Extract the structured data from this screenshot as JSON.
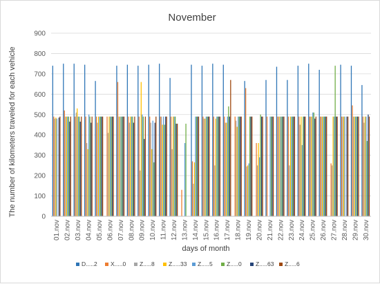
{
  "chart_data": {
    "type": "bar",
    "title": "November",
    "xlabel": "days of month",
    "ylabel": "The number of kilometers traveled for each vehicle",
    "ylim": [
      0,
      900
    ],
    "yticks": [
      0,
      100,
      200,
      300,
      400,
      500,
      600,
      700,
      800,
      900
    ],
    "grid": true,
    "legend_position": "bottom",
    "categories": [
      "01.nov",
      "02.nov",
      "03.nov",
      "04.nov",
      "05.nov",
      "06.nov",
      "07.nov",
      "08.nov",
      "09.nov",
      "10.nov",
      "11.nov",
      "12.nov",
      "13.nov",
      "14.nov",
      "15.nov",
      "16.nov",
      "17.nov",
      "18.nov",
      "19.nov",
      "20.nov",
      "21.nov",
      "22.nov",
      "23.nov",
      "24.nov",
      "25.nov",
      "26.nov",
      "27.nov",
      "28.nov",
      "29.nov",
      "30.nov"
    ],
    "series": [
      {
        "name": "D.....2",
        "color": "#2e75b6",
        "values": [
          740,
          750,
          750,
          745,
          665,
          0,
          740,
          745,
          740,
          745,
          750,
          680,
          0,
          745,
          740,
          750,
          745,
          0,
          665,
          0,
          670,
          735,
          670,
          740,
          750,
          720,
          0,
          745,
          740,
          645
        ]
      },
      {
        "name": "X.....0",
        "color": "#ed7d31",
        "values": [
          490,
          520,
          490,
          490,
          490,
          490,
          660,
          490,
          490,
          490,
          490,
          490,
          130,
          270,
          490,
          490,
          490,
          490,
          630,
          360,
          490,
          490,
          490,
          490,
          490,
          490,
          260,
          490,
          545,
          490
        ]
      },
      {
        "name": "Z.....8",
        "color": "#a5a5a5",
        "values": [
          480,
          490,
          510,
          360,
          460,
          410,
          490,
          460,
          225,
          460,
          490,
          330,
          0,
          160,
          480,
          250,
          460,
          470,
          245,
          250,
          0,
          490,
          250,
          450,
          490,
          490,
          250,
          490,
          490,
          460
        ]
      },
      {
        "name": "Z.....33",
        "color": "#ffc000",
        "values": [
          485,
          490,
          530,
          330,
          490,
          490,
          490,
          490,
          660,
          330,
          450,
          490,
          0,
          265,
          480,
          480,
          460,
          440,
          250,
          360,
          0,
          490,
          490,
          490,
          490,
          490,
          490,
          490,
          490,
          490
        ]
      },
      {
        "name": "Z.....5",
        "color": "#5b9bd5",
        "values": [
          480,
          490,
          490,
          500,
          490,
          490,
          490,
          490,
          500,
          470,
          490,
          490,
          360,
          490,
          490,
          490,
          490,
          490,
          260,
          290,
          490,
          490,
          490,
          350,
          510,
          490,
          490,
          490,
          490,
          490
        ]
      },
      {
        "name": "Z.....0",
        "color": "#70ad47",
        "values": [
          0,
          490,
          490,
          490,
          490,
          490,
          490,
          490,
          490,
          265,
          450,
          490,
          455,
          490,
          490,
          490,
          540,
          490,
          490,
          500,
          490,
          490,
          490,
          490,
          510,
          490,
          740,
          0,
          490,
          370
        ]
      },
      {
        "name": "Z.....63",
        "color": "#264478",
        "values": [
          485,
          465,
          465,
          460,
          490,
          490,
          490,
          460,
          380,
          460,
          490,
          455,
          0,
          490,
          490,
          490,
          490,
          490,
          490,
          490,
          490,
          490,
          490,
          490,
          480,
          490,
          490,
          490,
          490,
          500
        ]
      },
      {
        "name": "Z.....6",
        "color": "#9e480e",
        "values": [
          490,
          490,
          490,
          490,
          490,
          490,
          490,
          490,
          490,
          490,
          490,
          455,
          0,
          490,
          490,
          490,
          670,
          490,
          490,
          490,
          490,
          490,
          490,
          490,
          490,
          490,
          490,
          490,
          490,
          490
        ]
      }
    ]
  },
  "colors": {
    "grid": "#d9d9d9",
    "axis": "#bfbfbf",
    "text": "#595959"
  }
}
